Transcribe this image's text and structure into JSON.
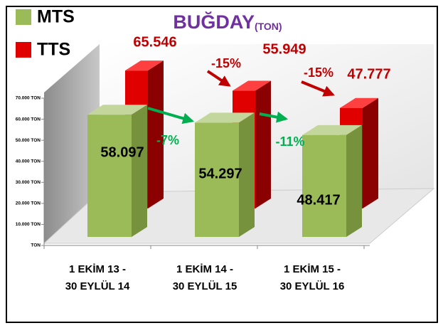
{
  "chart_data": {
    "type": "bar",
    "title": "BUĞDAY",
    "title_unit": "(TON)",
    "categories": [
      [
        "1 EKİM 13 -",
        "30 EYLÜL 14"
      ],
      [
        "1 EKİM 14 -",
        "30 EYLÜL 15"
      ],
      [
        "1 EKİM 15 -",
        "30 EYLÜL 16"
      ]
    ],
    "series": [
      {
        "name": "MTS",
        "color": "#9bbb59",
        "values": [
          58097,
          54297,
          48417
        ],
        "value_labels": [
          "58.097",
          "54.297",
          "48.417"
        ]
      },
      {
        "name": "TTS",
        "color": "#e00000",
        "values": [
          65546,
          55949,
          47777
        ],
        "value_labels": [
          "65.546",
          "55.949",
          "47.777"
        ]
      }
    ],
    "ylim": [
      0,
      70000
    ],
    "yticks": [
      {
        "value": 0,
        "label": "TON"
      },
      {
        "value": 10000,
        "label": "10.000 TON"
      },
      {
        "value": 20000,
        "label": "20.000 TON"
      },
      {
        "value": 30000,
        "label": "30.000 TON"
      },
      {
        "value": 40000,
        "label": "40.000 TON"
      },
      {
        "value": 50000,
        "label": "50.000 TON"
      },
      {
        "value": 60000,
        "label": "60.000 TON"
      },
      {
        "value": {
          "value": 70000
        },
        "label": "70.000 TON"
      }
    ],
    "annotations": [
      {
        "text": "-7%",
        "color": "#00b050"
      },
      {
        "text": "-11%",
        "color": "#00b050"
      },
      {
        "text": "-15%",
        "color": "#c00000"
      },
      {
        "text": "-15%",
        "color": "#c00000"
      }
    ],
    "legend": "top-left"
  }
}
